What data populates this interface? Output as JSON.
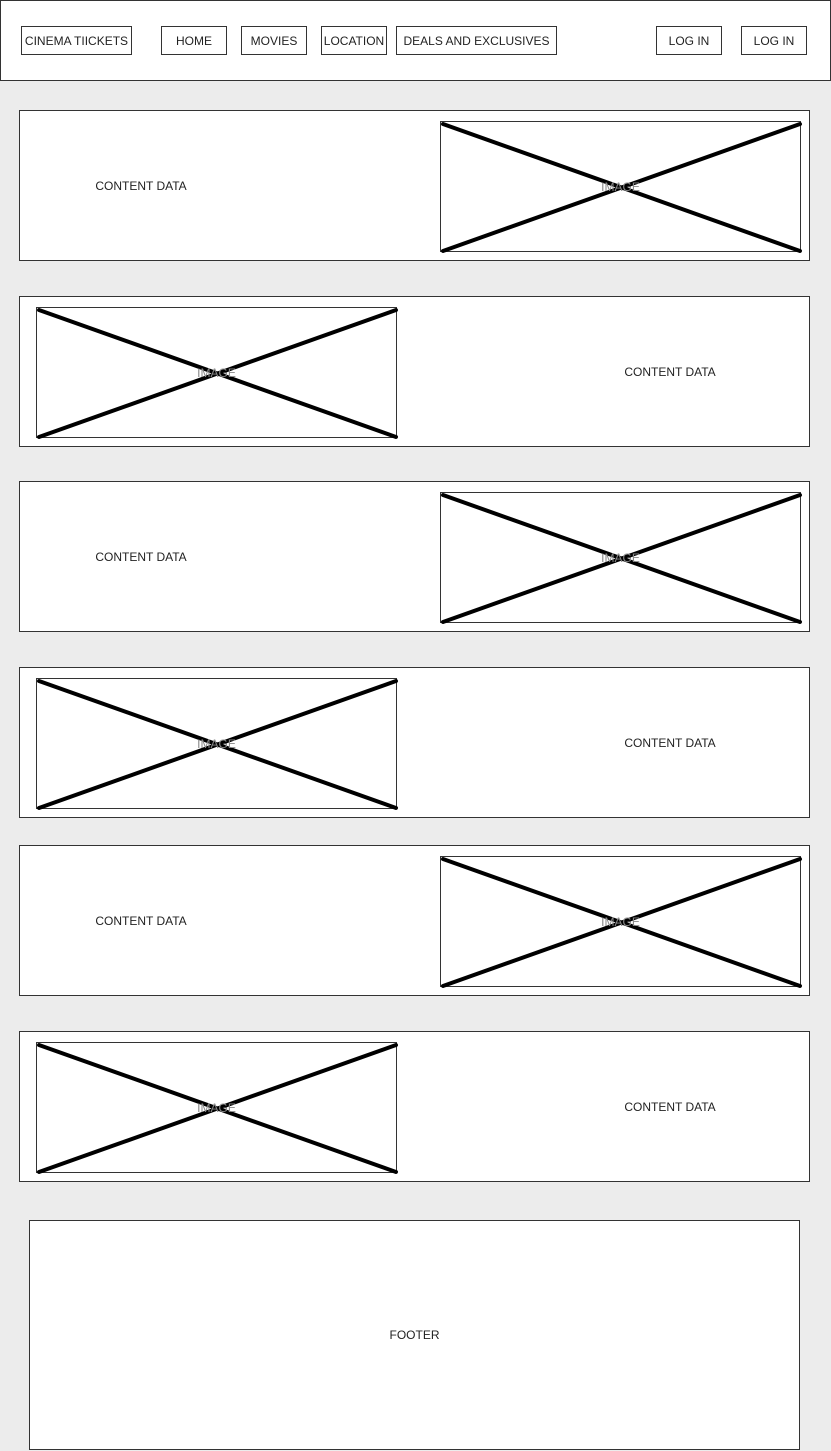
{
  "header": {
    "brand": "CINEMA TIICKETS",
    "nav": [
      "HOME",
      "MOVIES",
      "LOCATION",
      "DEALS AND EXCLUSIVES"
    ],
    "auth": [
      "LOG IN",
      "LOG IN"
    ]
  },
  "rows": [
    {
      "content": "CONTENT DATA",
      "image_label": "IMAGE",
      "image_side": "right"
    },
    {
      "content": "CONTENT DATA",
      "image_label": "IMAGE",
      "image_side": "left"
    },
    {
      "content": "CONTENT DATA",
      "image_label": "IMAGE",
      "image_side": "right"
    },
    {
      "content": "CONTENT DATA",
      "image_label": "IMAGE",
      "image_side": "left"
    },
    {
      "content": "CONTENT DATA",
      "image_label": "IMAGE",
      "image_side": "right"
    },
    {
      "content": "CONTENT DATA",
      "image_label": "IMAGE",
      "image_side": "left"
    }
  ],
  "footer": {
    "label": "FOOTER"
  }
}
